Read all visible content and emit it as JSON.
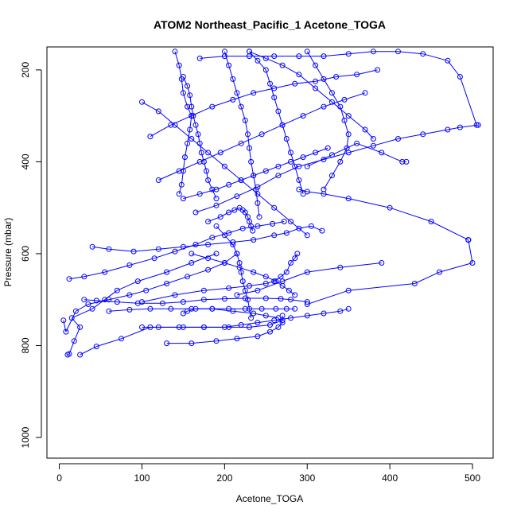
{
  "chart_data": {
    "type": "scatter",
    "title": "ATOM2 Northeast_Pacific_1 Acetone_TOGA",
    "xlabel": "Acetone_TOGA",
    "ylabel": "Pressure (mbar)",
    "xlim": [
      -15,
      525
    ],
    "ylim": [
      1045,
      150
    ],
    "y_reversed": true,
    "x_ticks": [
      0,
      100,
      200,
      300,
      400,
      500
    ],
    "y_ticks": [
      200,
      400,
      600,
      800,
      1000
    ],
    "grid": false,
    "legend": "none",
    "color": "#0000ff",
    "marker": "open-circle",
    "connected": true,
    "series": [
      {
        "x": [
          10,
          12,
          18,
          25,
          15,
          40,
          55,
          70,
          95,
          130,
          160,
          190
        ],
        "y": [
          820,
          818,
          790,
          760,
          740,
          720,
          700,
          680,
          660,
          640,
          620,
          600
        ]
      },
      {
        "x": [
          5,
          8,
          20,
          35,
          60,
          85,
          105,
          130,
          155,
          180,
          200,
          215
        ],
        "y": [
          745,
          770,
          725,
          710,
          700,
          690,
          680,
          665,
          650,
          635,
          620,
          600
        ]
      },
      {
        "x": [
          25,
          45,
          75,
          110,
          145,
          175,
          205,
          230,
          255,
          270,
          270
        ],
        "y": [
          820,
          802,
          785,
          760,
          760,
          760,
          760,
          760,
          755,
          745,
          735
        ]
      },
      {
        "x": [
          12,
          30,
          55,
          85,
          115,
          140,
          165,
          185,
          205,
          222,
          240,
          258,
          272
        ],
        "y": [
          655,
          650,
          640,
          625,
          610,
          595,
          580,
          565,
          555,
          545,
          540,
          535,
          530
        ]
      },
      {
        "x": [
          40,
          60,
          90,
          120,
          150,
          180,
          210,
          235,
          260,
          275,
          290,
          305,
          318
        ],
        "y": [
          585,
          590,
          595,
          590,
          585,
          580,
          575,
          570,
          560,
          555,
          545,
          540,
          550
        ]
      },
      {
        "x": [
          100,
          120,
          150,
          175,
          200,
          220,
          240,
          260,
          280,
          300,
          320,
          340,
          350
        ],
        "y": [
          760,
          760,
          760,
          760,
          760,
          755,
          750,
          745,
          740,
          735,
          730,
          725,
          720
        ]
      },
      {
        "x": [
          130,
          160,
          190,
          215,
          240,
          255,
          265,
          270,
          265,
          250,
          235,
          210,
          185,
          165,
          155,
          150
        ],
        "y": [
          795,
          795,
          790,
          785,
          780,
          770,
          760,
          750,
          740,
          735,
          730,
          725,
          720,
          720,
          725,
          730
        ]
      },
      {
        "x": [
          60,
          85,
          110,
          135,
          160,
          185,
          205,
          225,
          245,
          262,
          275,
          285
        ],
        "y": [
          725,
          722,
          720,
          720,
          720,
          720,
          720,
          720,
          720,
          720,
          720,
          720
        ]
      },
      {
        "x": [
          30,
          45,
          70,
          95,
          125,
          150,
          175,
          200,
          225,
          250,
          268,
          280,
          300
        ],
        "y": [
          700,
          702,
          705,
          708,
          708,
          705,
          700,
          698,
          697,
          697,
          698,
          700,
          705
        ]
      },
      {
        "x": [
          100,
          140,
          175,
          205,
          230,
          250,
          260,
          268,
          275,
          280,
          285,
          288
        ],
        "y": [
          705,
          690,
          680,
          675,
          670,
          665,
          660,
          650,
          640,
          620,
          610,
          600
        ]
      },
      {
        "x": [
          215,
          240,
          270,
          300,
          340,
          390
        ],
        "y": [
          690,
          680,
          660,
          640,
          630,
          620
        ]
      },
      {
        "x": [
          300,
          350,
          430,
          460,
          500,
          495,
          495
        ],
        "y": [
          710,
          680,
          665,
          640,
          620,
          570,
          570
        ]
      },
      {
        "x": [
          495,
          450,
          400,
          350,
          320,
          300,
          290
        ],
        "y": [
          570,
          530,
          500,
          480,
          470,
          465,
          460
        ]
      },
      {
        "x": [
          165,
          190,
          215,
          240,
          265,
          290,
          320,
          350,
          380,
          410,
          440,
          470,
          485,
          507
        ],
        "y": [
          510,
          495,
          475,
          455,
          430,
          410,
          395,
          380,
          365,
          350,
          340,
          330,
          325,
          320
        ]
      },
      {
        "x": [
          300,
          330,
          360,
          390,
          415,
          420
        ],
        "y": [
          410,
          385,
          360,
          380,
          400,
          400
        ]
      },
      {
        "x": [
          170,
          200,
          230,
          260,
          290,
          320,
          350,
          380,
          410,
          440,
          470,
          485,
          505
        ],
        "y": [
          175,
          170,
          170,
          170,
          170,
          170,
          165,
          160,
          160,
          165,
          180,
          215,
          320
        ]
      },
      {
        "x": [
          150,
          155,
          158,
          160,
          162,
          165,
          168,
          170,
          172,
          175,
          178,
          180,
          185,
          190
        ],
        "y": [
          215,
          235,
          255,
          280,
          300,
          320,
          340,
          360,
          380,
          400,
          420,
          440,
          460,
          480
        ]
      },
      {
        "x": [
          140,
          145,
          148,
          150,
          155,
          160,
          158,
          155,
          152,
          150,
          148,
          145
        ],
        "y": [
          160,
          190,
          220,
          250,
          280,
          300,
          330,
          360,
          390,
          420,
          450,
          470
        ]
      },
      {
        "x": [
          200,
          205,
          210,
          215,
          220,
          225,
          228,
          230,
          232,
          235,
          238,
          240,
          242
        ],
        "y": [
          160,
          190,
          220,
          250,
          280,
          310,
          340,
          370,
          400,
          430,
          460,
          490,
          520
        ]
      },
      {
        "x": [
          230,
          240,
          250,
          255,
          260,
          265,
          270,
          275,
          280,
          285,
          290,
          295
        ],
        "y": [
          160,
          180,
          200,
          230,
          260,
          290,
          320,
          350,
          380,
          410,
          440,
          470
        ]
      },
      {
        "x": [
          100,
          120,
          140,
          160,
          180,
          200,
          220,
          240,
          260,
          280,
          300
        ],
        "y": [
          270,
          290,
          320,
          350,
          380,
          410,
          440,
          470,
          500,
          530,
          560
        ]
      },
      {
        "x": [
          110,
          135,
          160,
          185,
          210,
          235,
          260,
          285,
          310,
          335,
          360,
          385
        ],
        "y": [
          345,
          320,
          300,
          280,
          265,
          250,
          240,
          230,
          225,
          215,
          210,
          200
        ]
      },
      {
        "x": [
          120,
          145,
          170,
          195,
          220,
          245,
          270,
          295,
          320,
          345,
          370
        ],
        "y": [
          440,
          420,
          400,
          380,
          360,
          340,
          320,
          300,
          280,
          265,
          250
        ]
      },
      {
        "x": [
          150,
          170,
          190,
          205,
          220,
          235,
          250,
          265,
          280,
          295,
          310,
          325
        ],
        "y": [
          480,
          470,
          460,
          450,
          440,
          430,
          420,
          410,
          400,
          390,
          380,
          370
        ]
      },
      {
        "x": [
          180,
          195,
          205,
          212,
          218,
          222,
          225,
          228,
          230,
          232,
          234
        ],
        "y": [
          530,
          520,
          510,
          505,
          500,
          505,
          510,
          520,
          530,
          540,
          550
        ]
      },
      {
        "x": [
          190,
          200,
          210,
          215,
          218,
          220,
          222,
          225,
          228,
          230,
          232
        ],
        "y": [
          540,
          560,
          580,
          600,
          620,
          640,
          660,
          680,
          700,
          720,
          740
        ]
      },
      {
        "x": [
          160,
          180,
          200,
          218,
          235,
          250,
          262,
          270,
          278,
          285
        ],
        "y": [
          600,
          610,
          620,
          630,
          640,
          650,
          660,
          670,
          680,
          690
        ]
      },
      {
        "x": [
          230,
          250,
          270,
          290,
          310,
          330,
          350,
          370,
          380
        ],
        "y": [
          160,
          175,
          190,
          210,
          240,
          270,
          300,
          330,
          350
        ]
      },
      {
        "x": [
          300,
          310,
          320,
          330,
          340,
          345,
          350,
          348,
          340,
          330,
          320
        ],
        "y": [
          160,
          190,
          220,
          250,
          280,
          310,
          340,
          370,
          400,
          430,
          460
        ]
      }
    ]
  }
}
